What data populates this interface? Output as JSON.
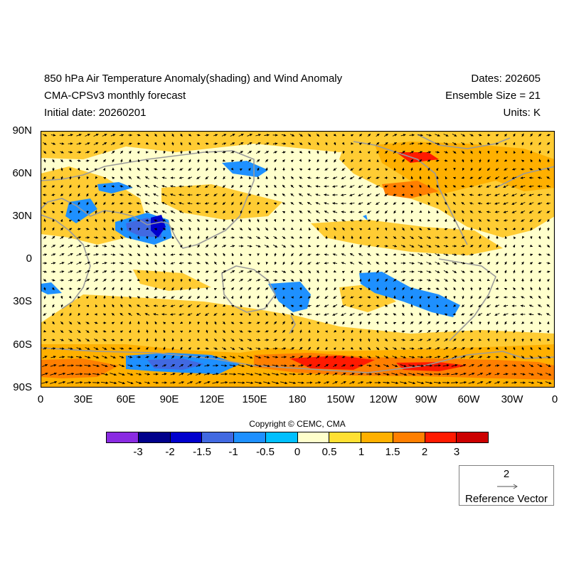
{
  "header": {
    "title_line1": "850 hPa Air Temperature Anomaly(shading) and Wind Anomaly",
    "title_line2": "CMA-CPSv3 monthly forecast",
    "title_line3": "Initial date: 20260201",
    "dates": "Dates: 202605",
    "ensemble": "Ensemble Size = 21",
    "units": "Units: K"
  },
  "axes": {
    "y_ticks": [
      "90N",
      "60N",
      "30N",
      "0",
      "30S",
      "60S",
      "90S"
    ],
    "x_ticks": [
      "0",
      "30E",
      "60E",
      "90E",
      "120E",
      "150E",
      "180",
      "150W",
      "120W",
      "90W",
      "60W",
      "30W",
      "0"
    ]
  },
  "copyright": "Copyright © CEMC, CMA",
  "colorbar": {
    "colors": [
      "#8a2be2",
      "#00008b",
      "#0000cd",
      "#4169e1",
      "#1e90ff",
      "#00bfff",
      "#ffffcc",
      "#ffe033",
      "#ffb000",
      "#ff7f00",
      "#ff1a00",
      "#cc0000"
    ],
    "labels": [
      "-3",
      "-2",
      "-1.5",
      "-1",
      "-0.5",
      "0",
      "0.5",
      "1",
      "1.5",
      "2",
      "3"
    ]
  },
  "reference_vector": {
    "magnitude": "2",
    "label": "Reference Vector"
  },
  "map_colors": {
    "background": "#ffffcc",
    "warm1": "#ffcc33",
    "warm2": "#ffb000",
    "warm3": "#ff7f00",
    "hot": "#ff1a00",
    "cool1": "#1e90ff",
    "cool2": "#4169e1",
    "cool3": "#0000cd",
    "coast": "#9a9a9a",
    "arrow": "#000000"
  }
}
